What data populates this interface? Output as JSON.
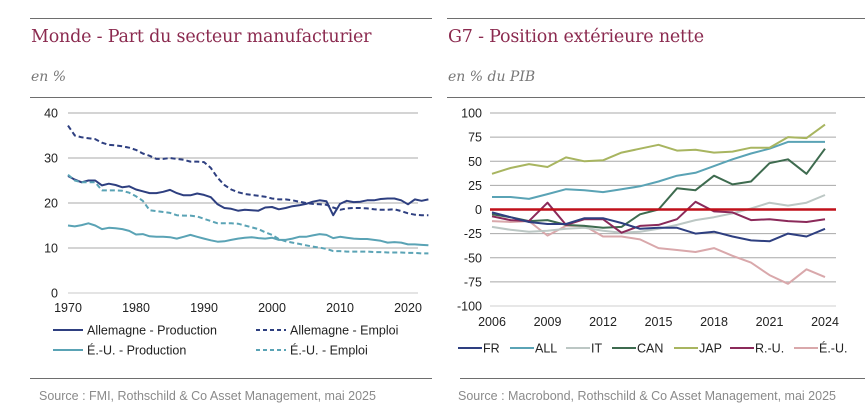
{
  "charts": [
    {
      "title": "Monde - Part du secteur manufacturier",
      "subtitle": "en %",
      "source": "Source : FMI, Rothschild & Co Asset Management, mai 2025"
    },
    {
      "title": "G7 - Position extérieure nette",
      "subtitle": "en % du PIB",
      "source": "Source : Macrobond, Rothschild & Co Asset Management, mai 2025"
    }
  ],
  "chart_data": [
    {
      "type": "line",
      "title": "Monde - Part du secteur manufacturier",
      "ylabel": "en %",
      "xlabel": "",
      "xlim": [
        1970,
        2023
      ],
      "ylim": [
        0,
        40
      ],
      "xticks": [
        1970,
        1980,
        1990,
        2000,
        2010,
        2020
      ],
      "yticks": [
        0,
        10,
        20,
        30,
        40
      ],
      "grid": true,
      "legend_position": "bottom",
      "x": [
        1970,
        1971,
        1972,
        1973,
        1974,
        1975,
        1976,
        1977,
        1978,
        1979,
        1980,
        1981,
        1982,
        1983,
        1984,
        1985,
        1986,
        1987,
        1988,
        1989,
        1990,
        1991,
        1992,
        1993,
        1994,
        1995,
        1996,
        1997,
        1998,
        1999,
        2000,
        2001,
        2002,
        2003,
        2004,
        2005,
        2006,
        2007,
        2008,
        2009,
        2010,
        2011,
        2012,
        2013,
        2014,
        2015,
        2016,
        2017,
        2018,
        2019,
        2020,
        2021,
        2022,
        2023
      ],
      "series": [
        {
          "name": "Allemagne - Production",
          "color": "#2e3f80",
          "dash": false,
          "values": [
            26.0,
            25.2,
            24.6,
            25.0,
            25.0,
            23.9,
            24.3,
            24.0,
            23.5,
            23.7,
            23.0,
            22.6,
            22.2,
            22.2,
            22.5,
            22.9,
            22.2,
            21.7,
            21.7,
            22.1,
            21.8,
            21.3,
            19.7,
            18.9,
            18.7,
            18.3,
            18.5,
            18.4,
            18.3,
            19.0,
            19.1,
            18.6,
            18.9,
            19.3,
            19.5,
            19.8,
            20.3,
            20.6,
            20.4,
            17.3,
            19.8,
            20.5,
            20.2,
            20.3,
            20.6,
            20.6,
            20.9,
            21.0,
            21.0,
            20.6,
            19.7,
            20.8,
            20.5,
            20.8
          ]
        },
        {
          "name": "Allemagne - Emploi",
          "color": "#2e3f80",
          "dash": true,
          "values": [
            37.2,
            35.0,
            34.6,
            34.4,
            34.2,
            33.4,
            32.9,
            32.8,
            32.6,
            32.3,
            31.8,
            31.0,
            30.5,
            29.8,
            29.8,
            30.0,
            29.8,
            29.6,
            29.2,
            29.2,
            29.1,
            27.8,
            25.6,
            24.0,
            23.0,
            22.4,
            22.0,
            21.8,
            21.6,
            21.4,
            21.0,
            20.8,
            20.8,
            20.6,
            20.3,
            20.0,
            19.8,
            19.7,
            19.6,
            19.0,
            18.5,
            18.8,
            18.9,
            18.9,
            18.8,
            18.6,
            18.5,
            18.5,
            18.6,
            18.2,
            17.7,
            17.4,
            17.3,
            17.3
          ]
        },
        {
          "name": "É.-U. - Production",
          "color": "#5aa3b5",
          "dash": false,
          "values": [
            15.0,
            14.8,
            15.1,
            15.5,
            15.0,
            14.2,
            14.5,
            14.4,
            14.2,
            13.8,
            13.0,
            13.1,
            12.6,
            12.5,
            12.5,
            12.4,
            12.1,
            12.5,
            12.9,
            12.5,
            12.1,
            11.7,
            11.4,
            11.5,
            11.8,
            12.1,
            12.3,
            12.4,
            12.2,
            12.1,
            12.3,
            11.8,
            11.8,
            12.1,
            12.5,
            12.5,
            12.8,
            13.1,
            12.9,
            12.2,
            12.5,
            12.3,
            12.1,
            12.0,
            12.0,
            11.8,
            11.6,
            11.2,
            11.3,
            11.2,
            10.8,
            10.8,
            10.7,
            10.6
          ]
        },
        {
          "name": "É.-U. - Emploi",
          "color": "#5aa3b5",
          "dash": true,
          "values": [
            26.3,
            25.0,
            24.6,
            24.6,
            24.6,
            22.8,
            22.8,
            22.8,
            22.7,
            22.3,
            21.5,
            20.5,
            18.4,
            18.2,
            18.0,
            17.8,
            17.3,
            17.2,
            17.2,
            17.0,
            16.5,
            16.0,
            15.5,
            15.5,
            15.5,
            15.4,
            15.0,
            14.6,
            14.2,
            13.5,
            12.9,
            12.0,
            11.5,
            11.2,
            10.9,
            10.6,
            10.3,
            10.1,
            9.8,
            9.3,
            9.3,
            9.2,
            9.2,
            9.2,
            9.2,
            9.1,
            9.1,
            9.0,
            9.0,
            9.0,
            8.9,
            8.9,
            8.8,
            8.8
          ]
        }
      ]
    },
    {
      "type": "line",
      "title": "G7 - Position extérieure nette",
      "ylabel": "en % du PIB",
      "xlabel": "",
      "xlim": [
        2006,
        2024
      ],
      "ylim": [
        -100,
        100
      ],
      "xticks": [
        2006,
        2009,
        2012,
        2015,
        2018,
        2021,
        2024
      ],
      "yticks": [
        -100,
        -75,
        -50,
        -25,
        0,
        25,
        50,
        75,
        100
      ],
      "grid": true,
      "reference_line": {
        "y": 0,
        "color": "#c0101a"
      },
      "legend_position": "bottom",
      "x": [
        2006,
        2007,
        2008,
        2009,
        2010,
        2011,
        2012,
        2013,
        2014,
        2015,
        2016,
        2017,
        2018,
        2019,
        2020,
        2021,
        2022,
        2023,
        2024
      ],
      "series": [
        {
          "name": "FR",
          "color": "#2e3f80",
          "values": [
            -3,
            -8,
            -13,
            -15,
            -15,
            -9,
            -9,
            -14,
            -20,
            -19,
            -19,
            -25,
            -23,
            -28,
            -32,
            -33,
            -25,
            -28,
            -20
          ]
        },
        {
          "name": "ALL",
          "color": "#5aa3b5",
          "values": [
            13,
            13,
            11,
            16,
            21,
            20,
            18,
            21,
            24,
            29,
            35,
            38,
            45,
            52,
            58,
            63,
            70,
            70,
            70
          ]
        },
        {
          "name": "IT",
          "color": "#bcc7c4",
          "values": [
            -18,
            -21,
            -23,
            -22,
            -20,
            -19,
            -22,
            -24,
            -23,
            -20,
            -16,
            -11,
            -8,
            -4,
            1,
            7,
            4,
            7,
            15
          ]
        },
        {
          "name": "CAN",
          "color": "#3e6b4f",
          "values": [
            -5,
            -8,
            -12,
            -11,
            -16,
            -17,
            -19,
            -18,
            -5,
            0,
            22,
            20,
            35,
            26,
            29,
            48,
            52,
            37,
            63
          ]
        },
        {
          "name": "JAP",
          "color": "#a8b560",
          "values": [
            37,
            43,
            47,
            44,
            54,
            50,
            51,
            59,
            63,
            67,
            61,
            62,
            59,
            60,
            64,
            64,
            75,
            74,
            88
          ]
        },
        {
          "name": "R.-U.",
          "color": "#8b2a5a",
          "values": [
            -7,
            -11,
            -12,
            7,
            -16,
            -10,
            -10,
            -24,
            -17,
            -16,
            -10,
            8,
            -2,
            -3,
            -11,
            -10,
            -12,
            -13,
            -10
          ]
        },
        {
          "name": "É.-U.",
          "color": "#d9a8ab",
          "values": [
            -12,
            -13,
            -12,
            -27,
            -17,
            -17,
            -28,
            -28,
            -31,
            -40,
            -42,
            -44,
            -40,
            -48,
            -55,
            -68,
            -77,
            -62,
            -70
          ]
        }
      ]
    }
  ]
}
